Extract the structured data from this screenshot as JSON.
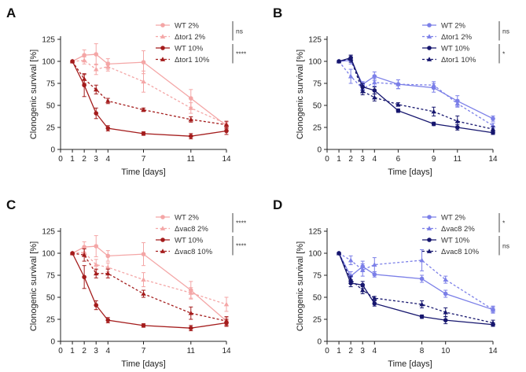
{
  "chart_data": [
    {
      "panel": "A",
      "type": "line",
      "xlabel": "Time [days]",
      "ylabel": "Clonogenic survival [%]",
      "xlim": [
        0,
        14
      ],
      "ylim": [
        0,
        125
      ],
      "xticks": [
        0,
        1,
        2,
        3,
        4,
        7,
        11,
        14
      ],
      "yticks": [
        0,
        25,
        50,
        75,
        100,
        125
      ],
      "series": [
        {
          "name": "WT 2%",
          "color": "#f4a6a6",
          "dashed": false,
          "marker": "circle",
          "x": [
            1,
            2,
            3,
            4,
            7,
            11,
            14
          ],
          "values": [
            100,
            107,
            108,
            97,
            99,
            58,
            27
          ],
          "err": [
            0,
            6,
            12,
            6,
            13,
            10,
            4
          ]
        },
        {
          "name": "Δtor1 2%",
          "color": "#f4a6a6",
          "dashed": true,
          "marker": "triangle",
          "x": [
            1,
            2,
            3,
            4,
            7,
            11,
            14
          ],
          "values": [
            100,
            101,
            91,
            94,
            77,
            47,
            29
          ],
          "err": [
            0,
            4,
            6,
            5,
            12,
            6,
            3
          ]
        },
        {
          "name": "WT 10%",
          "color": "#a41c1c",
          "dashed": false,
          "marker": "circle",
          "x": [
            1,
            2,
            3,
            4,
            7,
            11,
            14
          ],
          "values": [
            100,
            73,
            41,
            24,
            18,
            15,
            21
          ],
          "err": [
            0,
            13,
            6,
            3,
            2,
            3,
            4
          ]
        },
        {
          "name": "Δtor1 10%",
          "color": "#a41c1c",
          "dashed": true,
          "marker": "triangle",
          "x": [
            1,
            2,
            3,
            4,
            7,
            11,
            14
          ],
          "values": [
            100,
            80,
            68,
            55,
            45,
            34,
            28
          ],
          "err": [
            0,
            5,
            5,
            3,
            2,
            3,
            4
          ]
        }
      ],
      "significance": [
        {
          "label": "ns",
          "pair": [
            0,
            1
          ]
        },
        {
          "label": "****",
          "pair": [
            2,
            3
          ]
        }
      ]
    },
    {
      "panel": "B",
      "type": "line",
      "xlabel": "Time [days]",
      "ylabel": "Clonogenic survival [%]",
      "xlim": [
        0,
        14
      ],
      "ylim": [
        0,
        125
      ],
      "xticks": [
        0,
        1,
        2,
        3,
        4,
        6,
        9,
        11,
        14
      ],
      "yticks": [
        0,
        25,
        50,
        75,
        100,
        125
      ],
      "series": [
        {
          "name": "WT 2%",
          "color": "#7b7fe8",
          "dashed": false,
          "marker": "circle",
          "x": [
            1,
            2,
            3,
            4,
            6,
            9,
            11,
            14
          ],
          "values": [
            100,
            101,
            74,
            83,
            74,
            70,
            55,
            35
          ],
          "err": [
            0,
            4,
            3,
            5,
            5,
            5,
            6,
            3
          ]
        },
        {
          "name": "Δtor1 2%",
          "color": "#7b7fe8",
          "dashed": true,
          "marker": "triangle",
          "x": [
            1,
            2,
            3,
            4,
            6,
            9,
            11,
            14
          ],
          "values": [
            100,
            83,
            69,
            76,
            74,
            73,
            52,
            27
          ],
          "err": [
            0,
            8,
            4,
            4,
            5,
            4,
            4,
            3
          ]
        },
        {
          "name": "WT 10%",
          "color": "#16166e",
          "dashed": false,
          "marker": "circle",
          "x": [
            1,
            2,
            3,
            4,
            6,
            9,
            11,
            14
          ],
          "values": [
            100,
            104,
            71,
            67,
            44,
            29,
            25,
            19
          ],
          "err": [
            0,
            3,
            4,
            4,
            2,
            2,
            3,
            2
          ]
        },
        {
          "name": "Δtor1 10%",
          "color": "#16166e",
          "dashed": true,
          "marker": "triangle",
          "x": [
            1,
            2,
            3,
            4,
            6,
            9,
            11,
            14
          ],
          "values": [
            100,
            103,
            66,
            59,
            51,
            43,
            32,
            23
          ],
          "err": [
            0,
            4,
            4,
            4,
            2,
            5,
            6,
            3
          ]
        }
      ],
      "significance": [
        {
          "label": "ns",
          "pair": [
            0,
            1
          ]
        },
        {
          "label": "*",
          "pair": [
            2,
            3
          ]
        }
      ]
    },
    {
      "panel": "C",
      "type": "line",
      "xlabel": "Time [days]",
      "ylabel": "Clonogenic survival [%]",
      "xlim": [
        0,
        14
      ],
      "ylim": [
        0,
        125
      ],
      "xticks": [
        0,
        1,
        2,
        3,
        4,
        7,
        11,
        14
      ],
      "yticks": [
        0,
        25,
        50,
        75,
        100,
        125
      ],
      "series": [
        {
          "name": "WT 2%",
          "color": "#f4a6a6",
          "dashed": false,
          "marker": "circle",
          "x": [
            1,
            2,
            3,
            4,
            7,
            11,
            14
          ],
          "values": [
            100,
            107,
            108,
            97,
            99,
            58,
            23
          ],
          "err": [
            0,
            6,
            12,
            6,
            13,
            10,
            4
          ]
        },
        {
          "name": "Δvac8 2%",
          "color": "#f4a6a6",
          "dashed": true,
          "marker": "triangle",
          "x": [
            1,
            2,
            3,
            4,
            7,
            11,
            14
          ],
          "values": [
            100,
            101,
            87,
            84,
            70,
            55,
            42
          ],
          "err": [
            0,
            4,
            6,
            5,
            8,
            6,
            8
          ]
        },
        {
          "name": "WT 10%",
          "color": "#a41c1c",
          "dashed": false,
          "marker": "circle",
          "x": [
            1,
            2,
            3,
            4,
            7,
            11,
            14
          ],
          "values": [
            100,
            73,
            41,
            24,
            18,
            15,
            21
          ],
          "err": [
            0,
            13,
            5,
            3,
            2,
            3,
            4
          ]
        },
        {
          "name": "Δvac8 10%",
          "color": "#a41c1c",
          "dashed": true,
          "marker": "triangle",
          "x": [
            1,
            2,
            3,
            4,
            7,
            11,
            14
          ],
          "values": [
            100,
            98,
            77,
            77,
            54,
            32,
            23
          ],
          "err": [
            0,
            7,
            5,
            5,
            4,
            7,
            5
          ]
        }
      ],
      "significance": [
        {
          "label": "****",
          "pair": [
            0,
            1
          ]
        },
        {
          "label": "****",
          "pair": [
            2,
            3
          ]
        }
      ]
    },
    {
      "panel": "D",
      "type": "line",
      "xlabel": "Time [days]",
      "ylabel": "Clonogenic survival [%]",
      "xlim": [
        0,
        14
      ],
      "ylim": [
        0,
        125
      ],
      "xticks": [
        0,
        1,
        2,
        3,
        4,
        8,
        10,
        14
      ],
      "yticks": [
        0,
        25,
        50,
        75,
        100,
        125
      ],
      "series": [
        {
          "name": "WT 2%",
          "color": "#7b7fe8",
          "dashed": false,
          "marker": "circle",
          "x": [
            1,
            2,
            3,
            4,
            8,
            10,
            14
          ],
          "values": [
            100,
            74,
            85,
            76,
            71,
            54,
            36
          ],
          "err": [
            0,
            5,
            6,
            3,
            4,
            4,
            3
          ]
        },
        {
          "name": "Δvac8 2%",
          "color": "#7b7fe8",
          "dashed": true,
          "marker": "triangle",
          "x": [
            1,
            2,
            3,
            4,
            8,
            10,
            14
          ],
          "values": [
            100,
            92,
            81,
            87,
            92,
            70,
            36
          ],
          "err": [
            0,
            5,
            7,
            8,
            12,
            4,
            4
          ]
        },
        {
          "name": "WT 10%",
          "color": "#16166e",
          "dashed": false,
          "marker": "circle",
          "x": [
            1,
            2,
            3,
            4,
            8,
            10,
            14
          ],
          "values": [
            100,
            66,
            64,
            43,
            28,
            24,
            19
          ],
          "err": [
            0,
            4,
            4,
            3,
            2,
            4,
            2
          ]
        },
        {
          "name": "Δvac8 10%",
          "color": "#16166e",
          "dashed": true,
          "marker": "triangle",
          "x": [
            1,
            2,
            3,
            4,
            8,
            10,
            14
          ],
          "values": [
            100,
            70,
            58,
            49,
            42,
            33,
            21
          ],
          "err": [
            0,
            4,
            4,
            2,
            4,
            5,
            3
          ]
        }
      ],
      "significance": [
        {
          "label": "*",
          "pair": [
            0,
            1
          ]
        },
        {
          "label": "ns",
          "pair": [
            2,
            3
          ]
        }
      ]
    }
  ]
}
